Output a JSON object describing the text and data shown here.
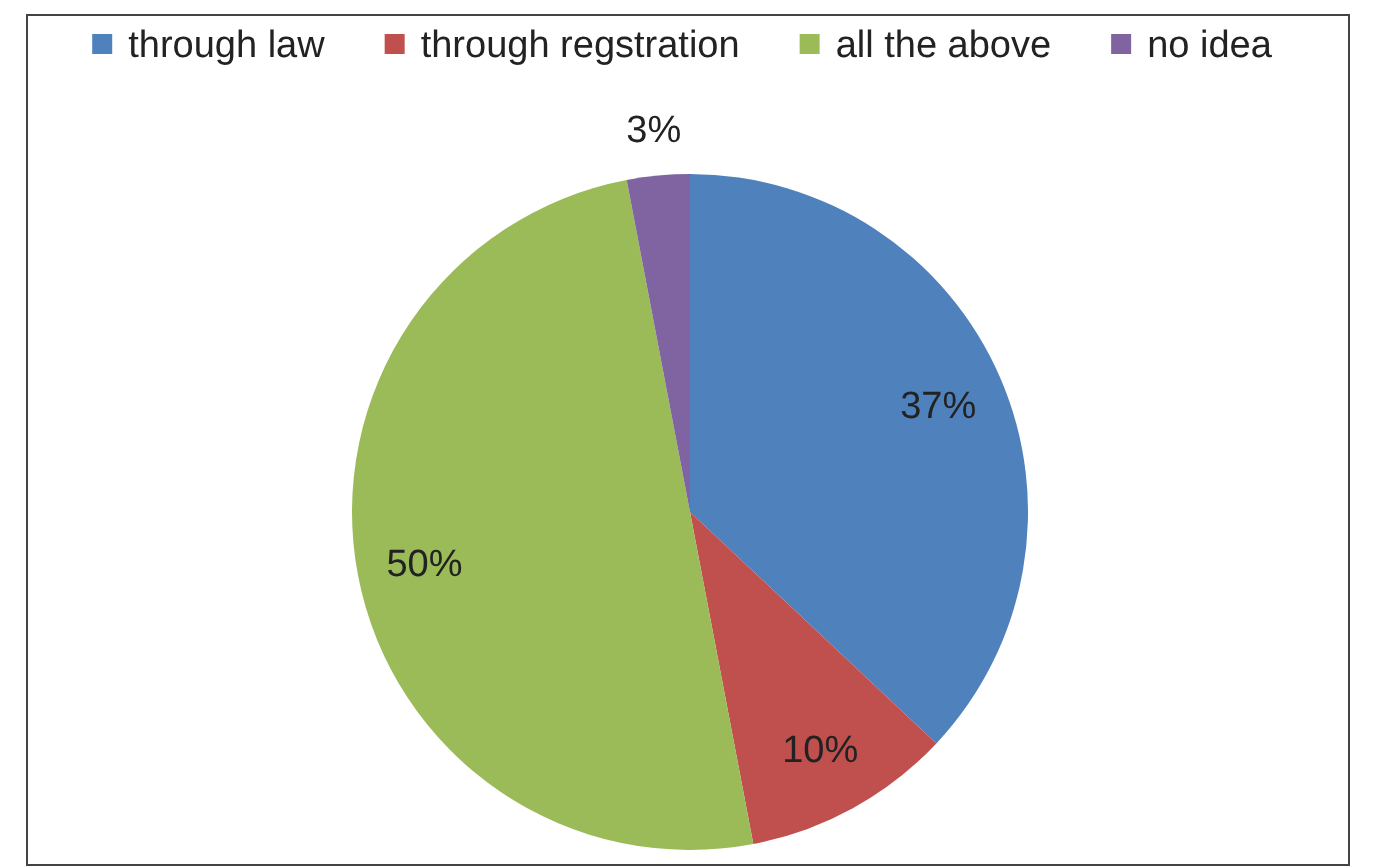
{
  "chart_data": {
    "type": "pie",
    "categories": [
      "through law",
      "through regstration",
      "all the above",
      "no idea"
    ],
    "values": [
      37,
      10,
      50,
      3
    ],
    "value_labels": [
      "37%",
      "10%",
      "50%",
      "3%"
    ],
    "colors": [
      "#4f81bd",
      "#c0504d",
      "#9bbb59",
      "#8064a2"
    ],
    "legend": "top"
  }
}
